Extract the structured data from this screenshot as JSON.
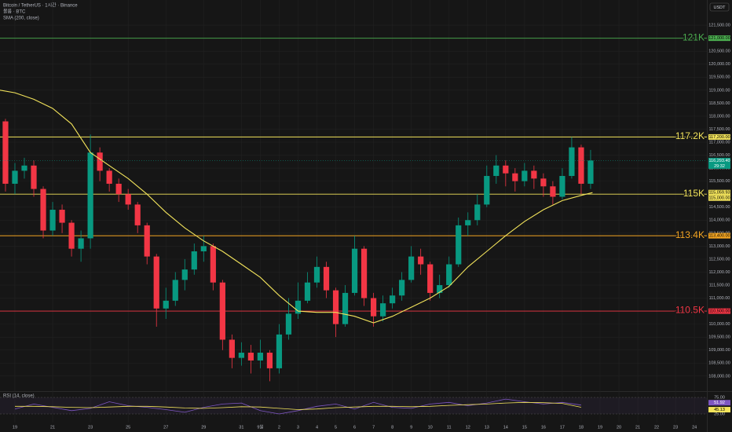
{
  "chart_data": [
    {
      "type": "candlestick",
      "title": "Bitcoin / TetherUS · 1시간 · Binance",
      "volume_label": "볼륨 · BTC",
      "currency": "USDT",
      "grid": true,
      "up_color": "#089981",
      "down_color": "#f23645",
      "xlim": [
        -0.79,
        36.66
      ],
      "xticks": [
        {
          "value": 0,
          "label": "19"
        },
        {
          "value": 2,
          "label": "21"
        },
        {
          "value": 4,
          "label": "23"
        },
        {
          "value": 6,
          "label": "25"
        },
        {
          "value": 8,
          "label": "27"
        },
        {
          "value": 10,
          "label": "29"
        },
        {
          "value": 12,
          "label": "31"
        },
        {
          "value": 13,
          "label": "9월"
        },
        {
          "value": 14,
          "label": "2"
        },
        {
          "value": 15,
          "label": "3"
        },
        {
          "value": 16,
          "label": "4"
        },
        {
          "value": 17,
          "label": "5"
        },
        {
          "value": 18,
          "label": "6"
        },
        {
          "value": 19,
          "label": "7"
        },
        {
          "value": 20,
          "label": "8"
        },
        {
          "value": 21,
          "label": "9"
        },
        {
          "value": 22,
          "label": "10"
        },
        {
          "value": 23,
          "label": "11"
        },
        {
          "value": 24,
          "label": "12"
        },
        {
          "value": 25,
          "label": "13"
        },
        {
          "value": 26,
          "label": "14"
        },
        {
          "value": 27,
          "label": "15"
        },
        {
          "value": 28,
          "label": "16"
        },
        {
          "value": 29,
          "label": "17"
        },
        {
          "value": 30,
          "label": "18"
        },
        {
          "value": 31,
          "label": "19"
        },
        {
          "value": 32,
          "label": "20"
        },
        {
          "value": 33,
          "label": "21"
        },
        {
          "value": 34,
          "label": "22"
        },
        {
          "value": 35,
          "label": "23"
        },
        {
          "value": 36,
          "label": "24"
        }
      ],
      "ylim": [
        107450,
        122470
      ],
      "yticks": [
        {
          "value": 108000,
          "label": "108,000.00"
        },
        {
          "value": 108500,
          "label": "108,500.00"
        },
        {
          "value": 109000,
          "label": "109,000.00"
        },
        {
          "value": 109500,
          "label": "109,500.00"
        },
        {
          "value": 110000,
          "label": "110,000.00"
        },
        {
          "value": 110500,
          "label": "110,500.00"
        },
        {
          "value": 111000,
          "label": "111,000.00"
        },
        {
          "value": 111500,
          "label": "111,500.00"
        },
        {
          "value": 112000,
          "label": "112,000.00"
        },
        {
          "value": 112500,
          "label": "112,500.00"
        },
        {
          "value": 113000,
          "label": "113,000.00"
        },
        {
          "value": 113500,
          "label": "113,500.00"
        },
        {
          "value": 114000,
          "label": "114,000.00"
        },
        {
          "value": 114500,
          "label": "114,500.00"
        },
        {
          "value": 115000,
          "label": "115,000.00"
        },
        {
          "value": 115500,
          "label": "115,500.00"
        },
        {
          "value": 116000,
          "label": "116,000.00"
        },
        {
          "value": 116500,
          "label": "116,500.00"
        },
        {
          "value": 117000,
          "label": "117,000.00"
        },
        {
          "value": 117500,
          "label": "117,500.00"
        },
        {
          "value": 118000,
          "label": "118,000.00"
        },
        {
          "value": 118500,
          "label": "118,500.00"
        },
        {
          "value": 119000,
          "label": "119,000.00"
        },
        {
          "value": 119500,
          "label": "119,500.00"
        },
        {
          "value": 120000,
          "label": "120,000.00"
        },
        {
          "value": 120500,
          "label": "120,500.00"
        },
        {
          "value": 121000,
          "label": "121,000.00"
        },
        {
          "value": 121500,
          "label": "121,500.00"
        }
      ],
      "x": [
        -0.5,
        0,
        0.5,
        1,
        1.5,
        2,
        2.5,
        3,
        3.5,
        4,
        4.5,
        5,
        5.5,
        6,
        6.5,
        7,
        7.5,
        8,
        8.5,
        9,
        9.5,
        10,
        10.5,
        11,
        11.5,
        12,
        12.5,
        13,
        13.5,
        14,
        14.5,
        15,
        15.5,
        16,
        16.5,
        17,
        17.5,
        18,
        18.5,
        19,
        19.5,
        20,
        20.5,
        21,
        21.5,
        22,
        22.5,
        23,
        23.5,
        24,
        24.5,
        25,
        25.5,
        26,
        26.5,
        27,
        27.5,
        28,
        28.5,
        29,
        29.5,
        30,
        30.5
      ],
      "open": [
        117800,
        115400,
        115900,
        116100,
        115200,
        113600,
        114400,
        113900,
        112900,
        113300,
        116600,
        115900,
        115400,
        115000,
        114600,
        113800,
        112600,
        110600,
        110900,
        111700,
        112100,
        112800,
        113000,
        111600,
        109400,
        108700,
        108900,
        108600,
        108900,
        108300,
        109600,
        110400,
        110900,
        111600,
        112200,
        111300,
        110000,
        111200,
        112900,
        111000,
        110300,
        110800,
        111100,
        111700,
        112600,
        112300,
        111200,
        111500,
        112300,
        113800,
        114000,
        114600,
        115700,
        116100,
        115800,
        115500,
        115900,
        115600,
        115300,
        114900,
        115700,
        116800,
        115400
      ],
      "high": [
        117900,
        116200,
        116400,
        116300,
        115300,
        114700,
        114600,
        114000,
        113600,
        117300,
        116800,
        116000,
        115600,
        115200,
        114700,
        113900,
        112700,
        111400,
        112000,
        112500,
        113100,
        113400,
        113100,
        111700,
        109600,
        109300,
        109200,
        109400,
        109000,
        110000,
        111000,
        111600,
        112000,
        112600,
        112400,
        111400,
        111500,
        113400,
        113000,
        111200,
        111100,
        111400,
        112000,
        113000,
        112900,
        112400,
        111900,
        112600,
        114100,
        114300,
        115000,
        116100,
        116500,
        116300,
        116000,
        116200,
        116100,
        115800,
        115500,
        116000,
        117200,
        116900,
        116700
      ],
      "low": [
        115100,
        115000,
        115600,
        114900,
        113300,
        113400,
        113500,
        112600,
        112400,
        112900,
        115500,
        115100,
        114700,
        114400,
        113500,
        112300,
        109900,
        110200,
        110700,
        111300,
        111900,
        112400,
        111300,
        109000,
        108300,
        108400,
        108100,
        108300,
        107800,
        108100,
        109400,
        110200,
        110800,
        111400,
        111000,
        109500,
        109900,
        111100,
        110700,
        109900,
        110100,
        110600,
        110900,
        111600,
        111900,
        110900,
        111000,
        111400,
        112200,
        113400,
        113800,
        114500,
        115400,
        115300,
        115100,
        115300,
        115200,
        114900,
        114600,
        114800,
        115600,
        115000,
        115200
      ],
      "close": [
        115400,
        115900,
        116100,
        115200,
        113600,
        114400,
        113900,
        112900,
        113300,
        116600,
        115900,
        115400,
        115000,
        114600,
        113800,
        112600,
        110600,
        110900,
        111700,
        112100,
        112800,
        113000,
        111600,
        109400,
        108700,
        108900,
        108600,
        108900,
        108300,
        109600,
        110400,
        110900,
        111600,
        112200,
        111300,
        110000,
        111200,
        112900,
        111000,
        110300,
        110800,
        111100,
        111700,
        112600,
        112300,
        111200,
        111500,
        112300,
        113800,
        114000,
        114600,
        115700,
        116100,
        115800,
        115500,
        115900,
        115600,
        115300,
        114900,
        115700,
        116800,
        115400,
        116293.4
      ],
      "last_price": {
        "value": 116293.4,
        "label": "116,293.40",
        "countdown": "29:32"
      },
      "sma": {
        "name": "SMA (200, close)",
        "color": "#f2e35b",
        "x": [
          -0.79,
          0,
          1,
          2,
          3,
          4,
          5,
          6,
          7,
          8,
          9,
          10,
          11,
          12,
          13,
          14,
          15,
          16,
          17,
          18,
          19,
          20,
          21,
          22,
          23,
          24,
          25,
          26,
          27,
          28,
          29,
          30,
          30.6
        ],
        "values": [
          119000,
          118900,
          118650,
          118300,
          117700,
          116600,
          116100,
          115600,
          115000,
          114300,
          113700,
          113200,
          112800,
          112300,
          111800,
          111100,
          110500,
          110450,
          110450,
          110300,
          110050,
          110300,
          110650,
          111000,
          111450,
          112200,
          112800,
          113400,
          113950,
          114400,
          114750,
          114950,
          115059.93
        ],
        "last_label": {
          "value": 115059.93,
          "label": "115,059.93"
        }
      },
      "levels": [
        {
          "value": 121000,
          "label": "121K",
          "axis_label": "121,000.00",
          "color": "#4caf50"
        },
        {
          "value": 117200,
          "label": "117.2K",
          "axis_label": "117,200.00",
          "color": "#f2e35b"
        },
        {
          "value": 115000,
          "label": "115K",
          "axis_label": "115,000.00",
          "color": "#f2e35b"
        },
        {
          "value": 113400,
          "label": "113.4K",
          "axis_label": "113,400.00",
          "color": "#f5a623"
        },
        {
          "value": 110500,
          "label": "110.5K",
          "axis_label": "110,500.00",
          "color": "#f23645"
        }
      ]
    },
    {
      "type": "line",
      "title": "RSI (14, close)",
      "x": [
        0,
        1,
        2,
        3,
        4,
        5,
        6,
        7,
        8,
        9,
        10,
        11,
        12,
        13,
        14,
        15,
        16,
        17,
        18,
        19,
        20,
        21,
        22,
        23,
        24,
        25,
        26,
        27,
        28,
        29,
        30
      ],
      "ylim": [
        0,
        100
      ],
      "yticks": [
        {
          "value": 75,
          "label": "75.00"
        },
        {
          "value": 25,
          "label": "25.00"
        }
      ],
      "series": [
        {
          "color": "#7e57c2",
          "values": [
            40,
            55,
            45,
            35,
            42,
            62,
            50,
            45,
            38,
            30,
            45,
            55,
            58,
            35,
            25,
            35,
            48,
            55,
            40,
            60,
            45,
            42,
            55,
            60,
            50,
            58,
            70,
            62,
            55,
            60,
            51.92
          ],
          "last_label": {
            "value": 51.92,
            "label": "51.92"
          }
        },
        {
          "color": "#f2e35b",
          "values": [
            48,
            48,
            47,
            45,
            44,
            46,
            48,
            48,
            46,
            43,
            42,
            44,
            47,
            46,
            42,
            38,
            40,
            44,
            46,
            48,
            48,
            47,
            48,
            51,
            53,
            55,
            58,
            60,
            59,
            57,
            45.13
          ],
          "last_label": {
            "value": 45.13,
            "label": "45.13"
          }
        }
      ]
    }
  ]
}
